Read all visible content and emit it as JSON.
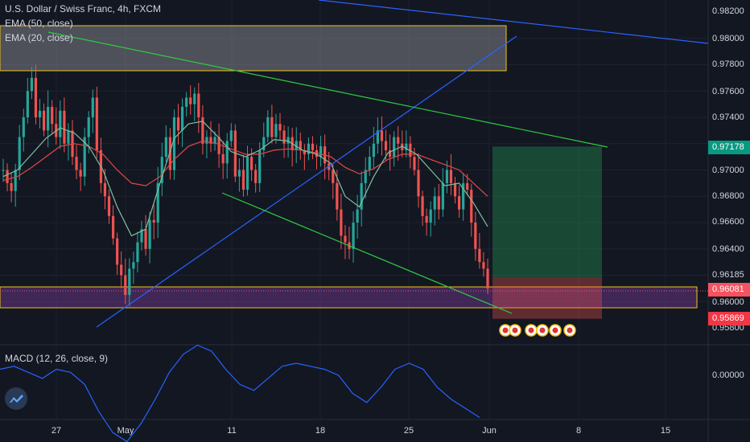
{
  "legend": {
    "title": "U.S. Dollar / Swiss Franc, 4h, FXCM",
    "ema50": "EMA (50, close)",
    "ema20": "EMA (20, close)",
    "macd": "MACD (12, 26, close, 9)"
  },
  "colors": {
    "background": "#131722",
    "up": "#26a69a",
    "down": "#ef5350",
    "ema20": "#7fbf9f",
    "ema50": "#e04848",
    "trend_blue": "#2962ff",
    "trend_green": "#2ecc40",
    "zone_border": "#f0c419",
    "macd": "#2962ff",
    "target_badge": "#089981",
    "stop_badge": "#f23645",
    "price_badge": "#f7525f"
  },
  "chart_data": {
    "type": "candlestick",
    "symbol": "U.S. Dollar / Swiss Franc",
    "timeframe": "4h",
    "source": "FXCM",
    "x_ticks": [
      "27",
      "May",
      "11",
      "18",
      "25",
      "Jun",
      "8",
      "15"
    ],
    "y_ticks": [
      "0.98200",
      "0.98000",
      "0.97800",
      "0.97600",
      "0.97400",
      "0.97000",
      "0.96800",
      "0.96600",
      "0.96400",
      "0.96000",
      "0.95800"
    ],
    "ylim": [
      0.9572,
      0.9828
    ],
    "price_badges": {
      "target": "0.97178",
      "entry": "0.96185",
      "last": "0.96081",
      "stop": "0.95869"
    },
    "price_path": [
      0.97,
      0.969,
      0.9684,
      0.97,
      0.9725,
      0.974,
      0.976,
      0.977,
      0.974,
      0.9745,
      0.973,
      0.9748,
      0.9735,
      0.9725,
      0.9745,
      0.972,
      0.973,
      0.971,
      0.97,
      0.9695,
      0.9725,
      0.974,
      0.9755,
      0.9715,
      0.969,
      0.968,
      0.9665,
      0.9648,
      0.9628,
      0.962,
      0.9605,
      0.9625,
      0.963,
      0.9645,
      0.9655,
      0.964,
      0.9662,
      0.966,
      0.969,
      0.971,
      0.9725,
      0.97,
      0.974,
      0.973,
      0.9748,
      0.9755,
      0.975,
      0.9758,
      0.974,
      0.972,
      0.9725,
      0.972,
      0.9725,
      0.9712,
      0.9705,
      0.9722,
      0.973,
      0.9695,
      0.97,
      0.9685,
      0.971,
      0.97,
      0.969,
      0.9715,
      0.9725,
      0.974,
      0.9725,
      0.9735,
      0.973,
      0.972,
      0.9725,
      0.9715,
      0.9722,
      0.9715,
      0.9712,
      0.972,
      0.9715,
      0.971,
      0.9718,
      0.9705,
      0.97,
      0.969,
      0.967,
      0.965,
      0.9645,
      0.964,
      0.966,
      0.967,
      0.969,
      0.97,
      0.971,
      0.972,
      0.973,
      0.9722,
      0.9715,
      0.971,
      0.9725,
      0.972,
      0.9715,
      0.972,
      0.971,
      0.97,
      0.968,
      0.9665,
      0.966,
      0.967,
      0.968,
      0.967,
      0.969,
      0.97,
      0.969,
      0.968,
      0.967,
      0.969,
      0.9685,
      0.966,
      0.964,
      0.963,
      0.9625,
      0.961
    ],
    "ema20": [
      0.9695,
      0.97,
      0.9712,
      0.9724,
      0.9732,
      0.9728,
      0.9718,
      0.97,
      0.9672,
      0.965,
      0.9655,
      0.969,
      0.9724,
      0.9735,
      0.9737,
      0.9726,
      0.9714,
      0.971,
      0.9715,
      0.9723,
      0.9722,
      0.9715,
      0.9712,
      0.9705,
      0.968,
      0.9672,
      0.9695,
      0.9713,
      0.9718,
      0.9712,
      0.97,
      0.9688,
      0.969,
      0.9675,
      0.9657
    ],
    "ema50": [
      0.9692,
      0.9695,
      0.9702,
      0.971,
      0.9718,
      0.972,
      0.9718,
      0.9712,
      0.97,
      0.969,
      0.9688,
      0.9695,
      0.9708,
      0.9718,
      0.9722,
      0.972,
      0.9716,
      0.9712,
      0.9712,
      0.9715,
      0.9716,
      0.9715,
      0.9713,
      0.971,
      0.9702,
      0.9697,
      0.9701,
      0.9708,
      0.9712,
      0.9712,
      0.9708,
      0.9704,
      0.97,
      0.969,
      0.968
    ],
    "macd": {
      "zero_label": "0.00000",
      "values": [
        0.0002,
        0.0003,
        0.0001,
        -0.0001,
        0.0002,
        0.0001,
        -0.0003,
        -0.0012,
        -0.0019,
        -0.0022,
        -0.0016,
        -0.0008,
        0.0001,
        0.0007,
        0.001,
        0.0008,
        0.0002,
        -0.0003,
        -0.0005,
        -0.0001,
        0.0003,
        0.0004,
        0.0003,
        0.0002,
        0.0,
        -0.0006,
        -0.0009,
        -0.0004,
        0.0002,
        0.0004,
        0.0002,
        -0.0004,
        -0.0008,
        -0.0011,
        -0.0014
      ]
    }
  }
}
